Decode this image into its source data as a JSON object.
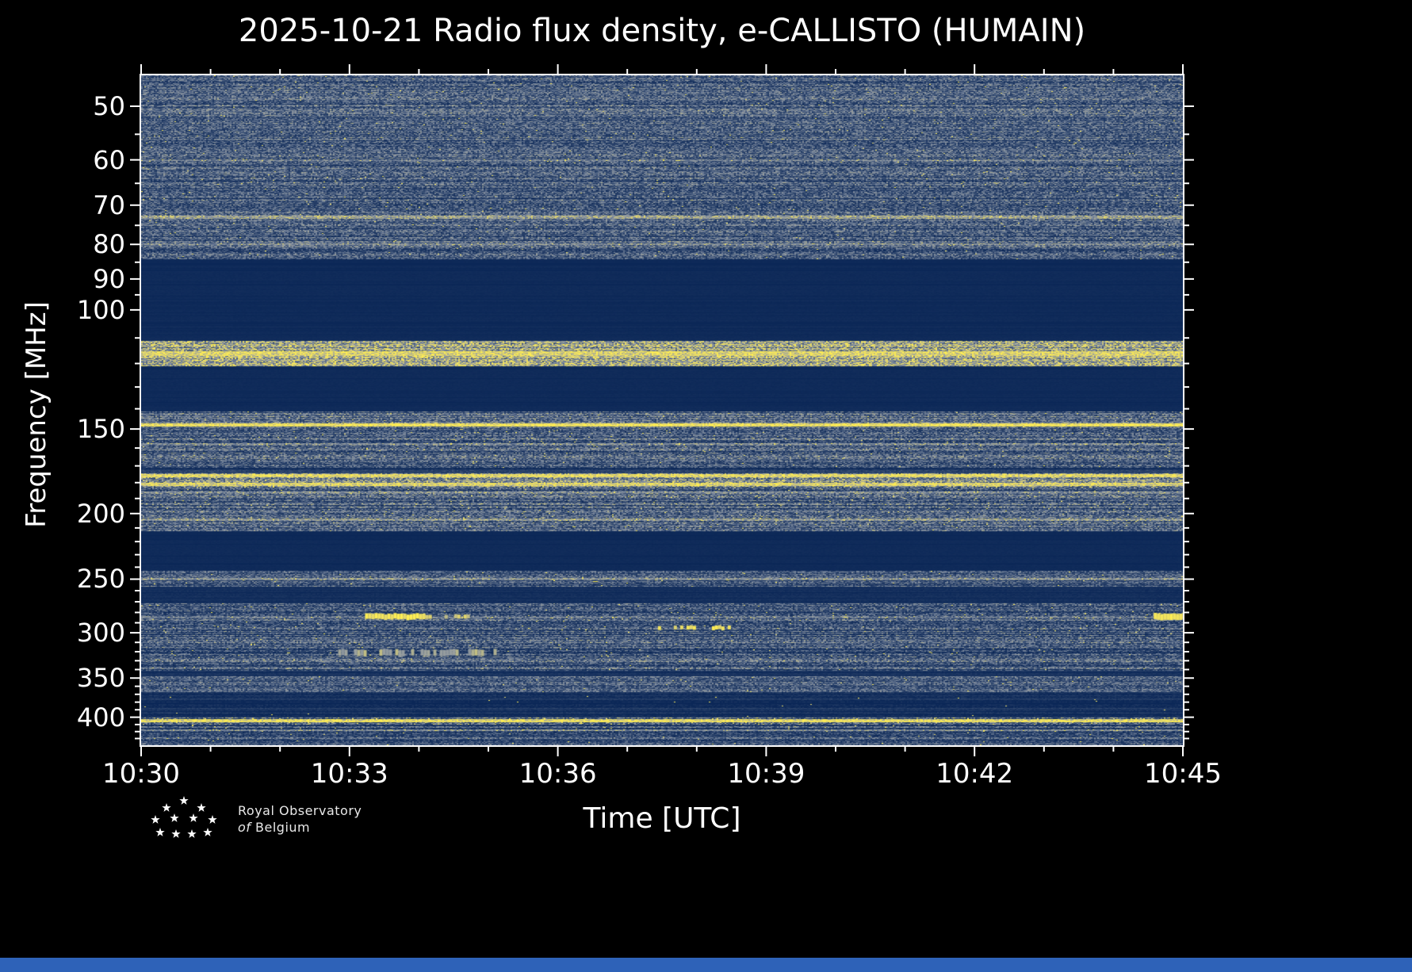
{
  "page": {
    "background": "#000000",
    "bottom_bar_color": "#2e62b8",
    "frame_color": "#ffffff",
    "text_color": "#ffffff"
  },
  "header": {
    "title": "2025-10-21 Radio flux density, e-CALLISTO (HUMAIN)"
  },
  "axes": {
    "x_label": "Time [UTC]",
    "y_label": "Frequency [MHz]",
    "x_ticks": [
      {
        "label": "10:30",
        "m": 0
      },
      {
        "label": "10:33",
        "m": 3
      },
      {
        "label": "10:36",
        "m": 6
      },
      {
        "label": "10:39",
        "m": 9
      },
      {
        "label": "10:42",
        "m": 12
      },
      {
        "label": "10:45",
        "m": 15
      }
    ],
    "x_minor_m": [
      1,
      2,
      4,
      5,
      7,
      8,
      10,
      11,
      13,
      14
    ],
    "y_ticks": [
      {
        "label": "50",
        "f": 50
      },
      {
        "label": "60",
        "f": 60
      },
      {
        "label": "70",
        "f": 70
      },
      {
        "label": "80",
        "f": 80
      },
      {
        "label": "90",
        "f": 90
      },
      {
        "label": "100",
        "f": 100
      },
      {
        "label": "150",
        "f": 150
      },
      {
        "label": "200",
        "f": 200
      },
      {
        "label": "250",
        "f": 250
      },
      {
        "label": "300",
        "f": 300
      },
      {
        "label": "350",
        "f": 350
      },
      {
        "label": "400",
        "f": 400
      }
    ],
    "y_minor_f": [
      55,
      65,
      75,
      85,
      95,
      110,
      120,
      130,
      140,
      160,
      170,
      180,
      190,
      210,
      220,
      230,
      240,
      260,
      270,
      280,
      290,
      310,
      320,
      330,
      340,
      360,
      370,
      380,
      390,
      410,
      420,
      430
    ],
    "xlim_minutes": [
      0,
      15
    ],
    "ylim_mhz": [
      45,
      440
    ],
    "y_scale": "log"
  },
  "chart_data": {
    "type": "heatmap",
    "title": "2025-10-21 Radio flux density, e-CALLISTO (HUMAIN)",
    "xlabel": "Time [UTC]",
    "ylabel": "Frequency [MHz]",
    "x_range_utc": [
      "10:30",
      "10:45"
    ],
    "x_tick_labels": [
      "10:30",
      "10:33",
      "10:36",
      "10:39",
      "10:42",
      "10:45"
    ],
    "y_tick_labels_mhz": [
      50,
      60,
      70,
      80,
      90,
      100,
      150,
      200,
      250,
      300,
      350,
      400
    ],
    "y_range_mhz": [
      45,
      440
    ],
    "y_scale": "log",
    "station": "HUMAIN",
    "date": "2025-10-21",
    "colormap_stops": [
      [
        0.0,
        "#0b2757"
      ],
      [
        0.32,
        "#31486e"
      ],
      [
        0.52,
        "#6b7b95"
      ],
      [
        0.7,
        "#9aa0a0"
      ],
      [
        0.84,
        "#d9cf74"
      ],
      [
        1.0,
        "#ffee52"
      ]
    ],
    "seed": 20251021,
    "bands": [
      {
        "lo": 45,
        "hi": 84,
        "base": 0.42,
        "rv": 0.1,
        "pv": 0.26,
        "speck": 0.004
      },
      {
        "lo": 84,
        "hi": 111,
        "base": 0.04,
        "rv": 0.01,
        "pv": 0.02,
        "speck": 0
      },
      {
        "lo": 111,
        "hi": 121,
        "base": 0.7,
        "rv": 0.06,
        "pv": 0.3,
        "speck": 0.05
      },
      {
        "lo": 121,
        "hi": 141,
        "base": 0.04,
        "rv": 0.01,
        "pv": 0.02,
        "speck": 0
      },
      {
        "lo": 141,
        "hi": 171,
        "base": 0.44,
        "rv": 0.12,
        "pv": 0.26,
        "speck": 0.006
      },
      {
        "lo": 171,
        "hi": 174,
        "base": 0.22,
        "rv": 0.06,
        "pv": 0.12,
        "speck": 0
      },
      {
        "lo": 174,
        "hi": 183,
        "base": 0.52,
        "rv": 0.14,
        "pv": 0.3,
        "speck": 0.03
      },
      {
        "lo": 183,
        "hi": 212,
        "base": 0.45,
        "rv": 0.12,
        "pv": 0.26,
        "speck": 0.008
      },
      {
        "lo": 212,
        "hi": 243,
        "base": 0.04,
        "rv": 0.01,
        "pv": 0.02,
        "speck": 0
      },
      {
        "lo": 243,
        "hi": 256,
        "base": 0.42,
        "rv": 0.1,
        "pv": 0.24,
        "speck": 0.004
      },
      {
        "lo": 256,
        "hi": 271,
        "base": 0.08,
        "rv": 0.03,
        "pv": 0.05,
        "speck": 0
      },
      {
        "lo": 271,
        "hi": 341,
        "base": 0.4,
        "rv": 0.14,
        "pv": 0.26,
        "speck": 0.005
      },
      {
        "lo": 341,
        "hi": 347,
        "base": 0.15,
        "rv": 0.05,
        "pv": 0.08,
        "speck": 0
      },
      {
        "lo": 347,
        "hi": 367,
        "base": 0.42,
        "rv": 0.1,
        "pv": 0.24,
        "speck": 0.004
      },
      {
        "lo": 367,
        "hi": 400,
        "base": 0.12,
        "rv": 0.1,
        "pv": 0.1,
        "speck": 0.001
      },
      {
        "lo": 400,
        "hi": 410,
        "base": 0.5,
        "rv": 0.1,
        "pv": 0.3,
        "speck": 0.04
      },
      {
        "lo": 410,
        "hi": 440,
        "base": 0.38,
        "rv": 0.12,
        "pv": 0.24,
        "speck": 0.004
      }
    ],
    "lines": [
      {
        "f": 60,
        "h": 2,
        "v": 0.6
      },
      {
        "f": 73,
        "h": 4,
        "v": 0.7
      },
      {
        "f": 80,
        "h": 2,
        "v": 0.58
      },
      {
        "f": 116,
        "h": 6,
        "v": 0.88
      },
      {
        "f": 148,
        "h": 4,
        "v": 0.95
      },
      {
        "f": 158,
        "h": 2,
        "v": 0.6
      },
      {
        "f": 176,
        "h": 4,
        "v": 0.92
      },
      {
        "f": 181,
        "h": 4,
        "v": 0.88
      },
      {
        "f": 186,
        "h": 2,
        "v": 0.62
      },
      {
        "f": 204,
        "h": 3,
        "v": 0.66
      },
      {
        "f": 250,
        "h": 3,
        "v": 0.6
      },
      {
        "f": 285,
        "h": 2,
        "v": 0.55
      },
      {
        "f": 405,
        "h": 4,
        "v": 0.92
      },
      {
        "f": 418,
        "h": 2,
        "v": 0.6
      }
    ],
    "events": [
      {
        "f": 284,
        "t0": 0.215,
        "t1": 0.27,
        "h": 7,
        "v": 0.97,
        "dash": false,
        "gap": 0
      },
      {
        "f": 284,
        "t0": 0.27,
        "t1": 0.315,
        "h": 5,
        "v": 0.85,
        "dash": true,
        "gap": 0.35
      },
      {
        "f": 295,
        "t0": 0.49,
        "t1": 0.565,
        "h": 5,
        "v": 0.92,
        "dash": true,
        "gap": 0.5
      },
      {
        "f": 321,
        "t0": 0.18,
        "t1": 0.34,
        "h": 8,
        "v": 0.72,
        "dash": true,
        "gap": 0.55
      },
      {
        "f": 284,
        "t0": 0.972,
        "t1": 1.0,
        "h": 8,
        "v": 0.95,
        "dash": false,
        "gap": 0
      }
    ]
  },
  "logo": {
    "line1": "Royal Observatory",
    "line2_italic": "of",
    "line2": "Belgium"
  }
}
